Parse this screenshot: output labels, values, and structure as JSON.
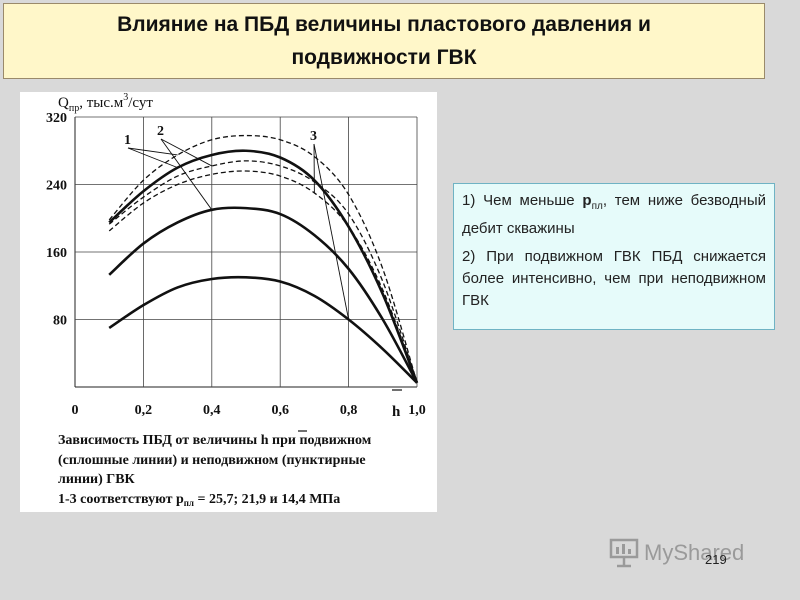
{
  "slide": {
    "title_line1": "Влияние на ПБД величины пластового давления и",
    "title_line2": "подвижности ГВК",
    "page_number": "219",
    "watermark": "MyShared"
  },
  "notes": {
    "item1_pre": "1) Чем меньше ",
    "item1_symbol": "р",
    "item1_sub": "пл",
    "item1_post": ", тем ниже безводный дебит скважины",
    "item2": "2) При подвижном ГВК  ПБД снижается более интенсивно, чем при неподвижном ГВК"
  },
  "figure": {
    "caption_line1_pre": "Зависимость ПБД от величины ",
    "caption_line1_symbol": "h",
    "caption_line1_post": " при подвижном",
    "caption_line2": "(сплошные линии)  и неподвижном (пунктирные",
    "caption_line3": "линии) ГВК",
    "caption_line4_pre": "1-3 соответствуют  р",
    "caption_line4_sub": "пл",
    "caption_line4_post": " = 25,7; 21,9 и 14,4 МПа"
  },
  "chart_data": {
    "type": "line",
    "ylabel_main": "Q",
    "ylabel_sub": "пр",
    "ylabel_rest": ", тыс.м",
    "ylabel_sup": "3",
    "ylabel_tail": "/сут",
    "xlabel": "h",
    "xlim": [
      0,
      1.0
    ],
    "ylim": [
      0,
      320
    ],
    "x_ticks": [
      "0",
      "0,2",
      "0,4",
      "0,6",
      "0,8",
      "1,0"
    ],
    "x_tick_values": [
      0,
      0.2,
      0.4,
      0.6,
      0.8,
      1.0
    ],
    "y_ticks": [
      "80",
      "160",
      "240",
      "320"
    ],
    "y_tick_values": [
      80,
      160,
      240,
      320
    ],
    "grid": true,
    "curve_labels": [
      "1",
      "2",
      "3"
    ],
    "series": [
      {
        "line_style": "dashed",
        "x": [
          0.1,
          0.2,
          0.3,
          0.4,
          0.5,
          0.6,
          0.7,
          0.8,
          0.9,
          1.0
        ],
        "y": [
          198,
          245,
          275,
          293,
          298,
          293,
          273,
          228,
          140,
          5
        ]
      },
      {
        "line_style": "solid",
        "x": [
          0.1,
          0.2,
          0.3,
          0.4,
          0.5,
          0.6,
          0.7,
          0.8,
          0.9,
          1.0
        ],
        "y": [
          195,
          232,
          260,
          275,
          280,
          272,
          245,
          190,
          110,
          5
        ]
      },
      {
        "line_style": "dashed",
        "x": [
          0.1,
          0.2,
          0.3,
          0.4,
          0.5,
          0.6,
          0.7,
          0.8,
          0.9,
          1.0
        ],
        "y": [
          193,
          225,
          250,
          262,
          268,
          262,
          243,
          205,
          125,
          5
        ]
      },
      {
        "line_style": "dashed",
        "x": [
          0.1,
          0.2,
          0.3,
          0.4,
          0.5,
          0.6,
          0.7,
          0.8,
          0.9,
          1.0
        ],
        "y": [
          185,
          218,
          240,
          252,
          256,
          250,
          230,
          190,
          115,
          5
        ]
      },
      {
        "line_style": "solid",
        "x": [
          0.1,
          0.2,
          0.3,
          0.4,
          0.5,
          0.6,
          0.7,
          0.8,
          0.9,
          1.0
        ],
        "y": [
          133,
          170,
          195,
          210,
          212,
          205,
          180,
          140,
          80,
          5
        ]
      },
      {
        "line_style": "solid",
        "x": [
          0.1,
          0.2,
          0.3,
          0.4,
          0.5,
          0.6,
          0.7,
          0.8,
          0.9,
          1.0
        ],
        "y": [
          70,
          97,
          118,
          128,
          130,
          125,
          108,
          80,
          45,
          5
        ]
      }
    ]
  }
}
